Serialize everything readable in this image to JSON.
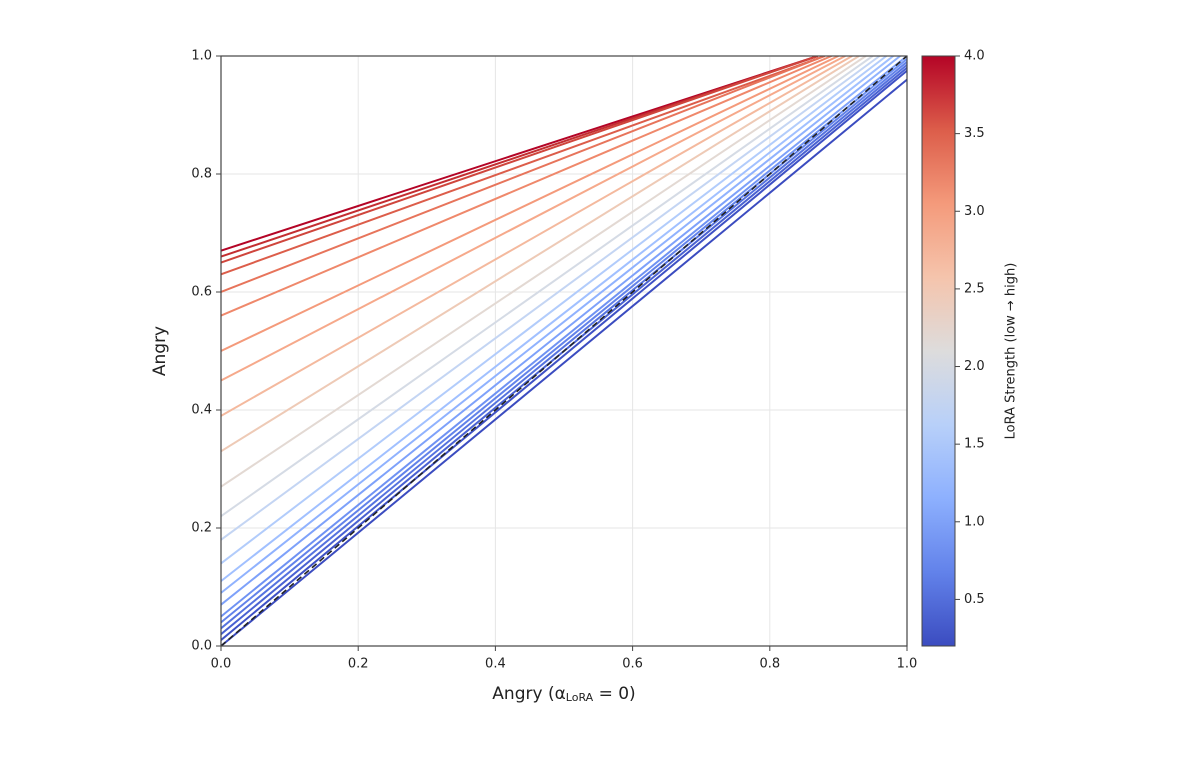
{
  "chart_data": {
    "type": "line",
    "xlabel": {
      "text": "Angry (α",
      "sub": "LoRA",
      "tail": " = 0)"
    },
    "ylabel": "Angry",
    "xlim": [
      0,
      1
    ],
    "ylim": [
      0,
      1
    ],
    "xticks": [
      {
        "value": 0,
        "label": "0.0"
      },
      0.2,
      0.4,
      0.6,
      0.8,
      {
        "value": 1,
        "label": "1.0"
      }
    ],
    "yticks": [
      {
        "value": 0,
        "label": "0.0"
      },
      0.2,
      0.4,
      0.6,
      0.8,
      {
        "value": 1,
        "label": "1.0"
      }
    ],
    "grid": true,
    "series": [
      {
        "color": "#b40426",
        "x": [
          0,
          0.87
        ],
        "values": [
          0.67,
          1
        ]
      },
      {
        "color": "#c32e31",
        "x": [
          0,
          0.87
        ],
        "values": [
          0.66,
          1
        ]
      },
      {
        "color": "#cf453c",
        "x": [
          0,
          0.87
        ],
        "values": [
          0.65,
          1
        ]
      },
      {
        "color": "#dc5d4a",
        "x": [
          0,
          0.88
        ],
        "values": [
          0.63,
          1
        ]
      },
      {
        "color": "#e7745b",
        "x": [
          0,
          0.88
        ],
        "values": [
          0.6,
          1
        ]
      },
      {
        "color": "#ef886b",
        "x": [
          0,
          0.89
        ],
        "values": [
          0.56,
          1
        ]
      },
      {
        "color": "#f49a7b",
        "x": [
          0,
          0.9
        ],
        "values": [
          0.5,
          1
        ]
      },
      {
        "color": "#f6a98b",
        "x": [
          0,
          0.91
        ],
        "values": [
          0.45,
          1
        ]
      },
      {
        "color": "#f4b99e",
        "x": [
          0,
          0.92
        ],
        "values": [
          0.39,
          1
        ]
      },
      {
        "color": "#eecab6",
        "x": [
          0,
          0.93
        ],
        "values": [
          0.33,
          1
        ]
      },
      {
        "color": "#e3d9d3",
        "x": [
          0,
          0.94
        ],
        "values": [
          0.27,
          1
        ]
      },
      {
        "color": "#d5dbe5",
        "x": [
          0,
          0.95
        ],
        "values": [
          0.22,
          1
        ]
      },
      {
        "color": "#c4d5f3",
        "x": [
          0,
          0.96
        ],
        "values": [
          0.18,
          1
        ]
      },
      {
        "color": "#b2ccfb",
        "x": [
          0,
          0.97
        ],
        "values": [
          0.14,
          1
        ]
      },
      {
        "color": "#a1c0ff",
        "x": [
          0,
          0.98
        ],
        "values": [
          0.11,
          1
        ]
      },
      {
        "color": "#90b2fe",
        "x": [
          0,
          0.99
        ],
        "values": [
          0.09,
          1
        ]
      },
      {
        "color": "#7ea1fa",
        "x": [
          0,
          1
        ],
        "values": [
          0.07,
          1
        ]
      },
      {
        "color": "#6f92f3",
        "x": [
          0,
          1
        ],
        "values": [
          0.05,
          0.995
        ]
      },
      {
        "color": "#6282ea",
        "x": [
          0,
          1
        ],
        "values": [
          0.04,
          0.99
        ]
      },
      {
        "color": "#5572df",
        "x": [
          0,
          1
        ],
        "values": [
          0.03,
          0.985
        ]
      },
      {
        "color": "#4961d2",
        "x": [
          0,
          1
        ],
        "values": [
          0.02,
          0.98
        ]
      },
      {
        "color": "#3e51c5",
        "x": [
          0,
          1
        ],
        "values": [
          0.01,
          0.975
        ]
      },
      {
        "color": "#3b4cc0",
        "x": [
          0,
          1
        ],
        "values": [
          0,
          0.96
        ]
      },
      {
        "color": "#222222",
        "linestyle": "dashed",
        "x": [
          0,
          1
        ],
        "values": [
          0,
          1
        ]
      }
    ],
    "colorbar": {
      "label": "LoRA Strength (low → high)",
      "clim": [
        0.2,
        4
      ],
      "ticks": [
        0.5,
        {
          "value": 1,
          "label": "1.0"
        },
        1.5,
        {
          "value": 2,
          "label": "2.0"
        },
        2.5,
        {
          "value": 3,
          "label": "3.0"
        },
        3.5,
        {
          "value": 4,
          "label": "4.0"
        }
      ],
      "colors": [
        "#3b4cc0",
        "#6282ea",
        "#8db0fe",
        "#b8d0f9",
        "#dddcdc",
        "#f5c4ac",
        "#f49a7b",
        "#dc5d4a",
        "#b40426"
      ]
    }
  }
}
